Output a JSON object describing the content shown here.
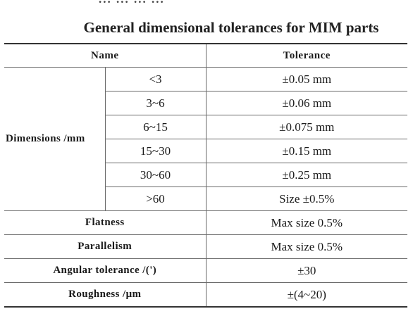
{
  "top_text": "...  ...  ... ...",
  "title": "General dimensional tolerances for MIM parts",
  "table": {
    "header_name": "Name",
    "header_tolerance": "Tolerance",
    "dimensions_label": "Dimensions /mm",
    "dimension_rows": [
      {
        "range": "<3",
        "tolerance": "±0.05 mm"
      },
      {
        "range": "3~6",
        "tolerance": "±0.06 mm"
      },
      {
        "range": "6~15",
        "tolerance": "±0.075 mm"
      },
      {
        "range": "15~30",
        "tolerance": "±0.15 mm"
      },
      {
        "range": "30~60",
        "tolerance": "±0.25 mm"
      },
      {
        "range": ">60",
        "tolerance": "Size ±0.5%"
      }
    ],
    "other_rows": [
      {
        "name": "Flatness",
        "tolerance": "Max size 0.5%"
      },
      {
        "name": "Parallelism",
        "tolerance": "Max size 0.5%"
      },
      {
        "name": "Angular tolerance /(')",
        "tolerance": "±30"
      },
      {
        "name": "Roughness /μm",
        "tolerance": "±(4~20)"
      }
    ]
  }
}
